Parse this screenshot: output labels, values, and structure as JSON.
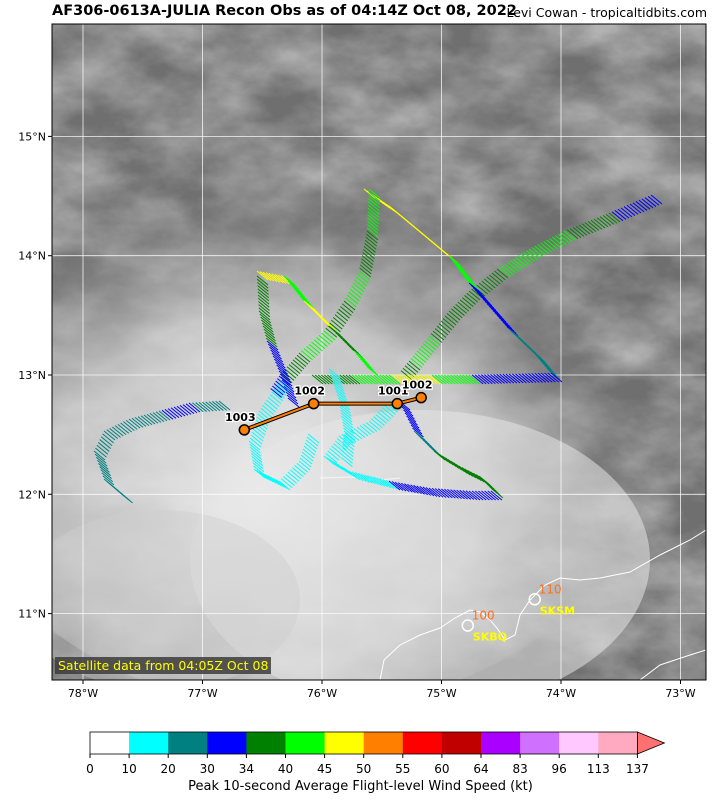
{
  "header": {
    "title": "AF306-0613A-JULIA Recon Obs as of 04:14Z Oct 08, 2022",
    "credit": "Levi Cowan - tropicaltidbits.com"
  },
  "map": {
    "lon_labels": [
      "78°W",
      "77°W",
      "76°W",
      "75°W",
      "74°W",
      "73°W"
    ],
    "lat_labels": [
      "15°N",
      "14°N",
      "13°N",
      "12°N",
      "11°N"
    ],
    "satellite_caption": "Satellite data from 04:05Z Oct 08"
  },
  "pressure_obs": [
    {
      "value": "1003",
      "lon": -76.65,
      "lat": 12.54
    },
    {
      "value": "1002",
      "lon": -76.07,
      "lat": 12.76
    },
    {
      "value": "1001",
      "lon": -75.37,
      "lat": 12.76
    },
    {
      "value": "1002",
      "lon": -75.17,
      "lat": 12.81
    }
  ],
  "stations": [
    {
      "id": "SKSM",
      "value": "110",
      "lon": -74.22,
      "lat": 11.12
    },
    {
      "id": "SKBQ",
      "value": "100",
      "lon": -74.78,
      "lat": 10.9
    }
  ],
  "colorbar": {
    "title": "Peak 10-second Average Flight-level Wind Speed (kt)",
    "ticks": [
      "0",
      "10",
      "20",
      "30",
      "34",
      "40",
      "45",
      "50",
      "55",
      "60",
      "64",
      "83",
      "96",
      "113",
      "137"
    ],
    "colors": [
      "#ffffff",
      "#00ffff",
      "#008080",
      "#0000ff",
      "#008000",
      "#00ff00",
      "#ffff00",
      "#ff8000",
      "#ff0000",
      "#c00000",
      "#aa00ff",
      "#d070ff",
      "#ffc8ff",
      "#ffaac0"
    ],
    "extend_color": "#ff7070"
  },
  "accent": {
    "track": "#000000",
    "obs_fill": "#ff8000",
    "station_text": "#ffff00",
    "station_value": "#ff7020"
  }
}
